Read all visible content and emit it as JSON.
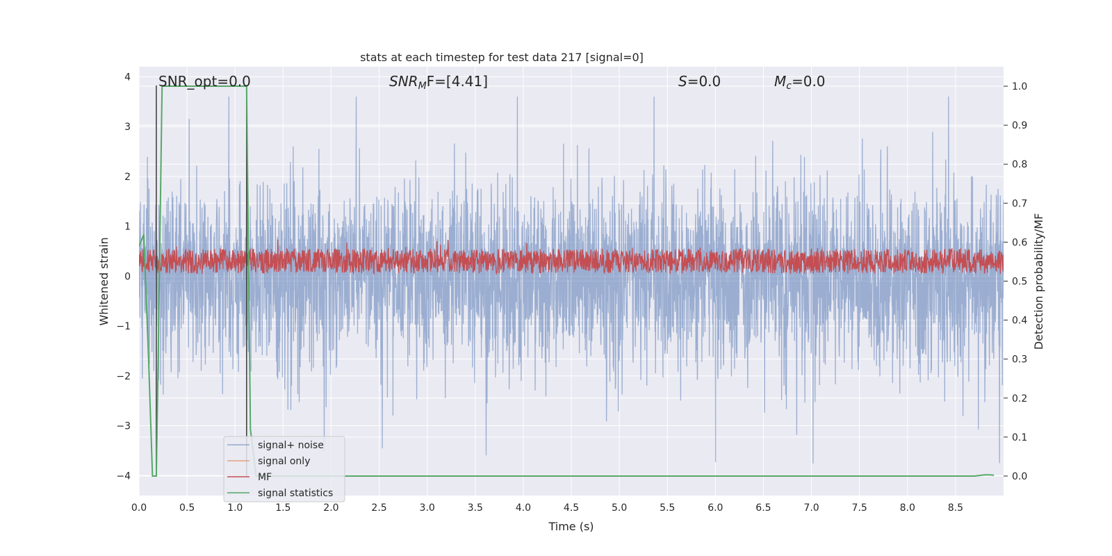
{
  "chart_data": {
    "type": "line",
    "title": "stats at each timestep for test data 217 [signal=0]",
    "xlabel": "Time (s)",
    "ylabel": "Whitened strain",
    "ylabel_right": "Detection probability/MF",
    "xlim": [
      0,
      9.0
    ],
    "ylim": [
      -4.4,
      4.2
    ],
    "ylim_right": [
      -0.05,
      1.05
    ],
    "xticks": [
      0.0,
      0.5,
      1.0,
      1.5,
      2.0,
      2.5,
      3.0,
      3.5,
      4.0,
      4.5,
      5.0,
      5.5,
      6.0,
      6.5,
      7.0,
      7.5,
      8.0,
      8.5
    ],
    "xtick_labels": [
      "0.0",
      "0.5",
      "1.0",
      "1.5",
      "2.0",
      "2.5",
      "3.0",
      "3.5",
      "4.0",
      "4.5",
      "5.0",
      "5.5",
      "6.0",
      "6.5",
      "7.0",
      "7.5",
      "8.0",
      "8.5"
    ],
    "yticks": [
      -4,
      -3,
      -2,
      -1,
      0,
      1,
      2,
      3,
      4
    ],
    "ytick_labels": [
      "−4",
      "−3",
      "−2",
      "−1",
      "0",
      "1",
      "2",
      "3",
      "4"
    ],
    "yticks_right": [
      0.0,
      0.1,
      0.2,
      0.3,
      0.4,
      0.5,
      0.6,
      0.7,
      0.8,
      0.9,
      1.0
    ],
    "ytick_labels_right": [
      "0.0",
      "0.1",
      "0.2",
      "0.3",
      "0.4",
      "0.5",
      "0.6",
      "0.7",
      "0.8",
      "0.9",
      "1.0"
    ],
    "grid": true,
    "legend_position": "lower-left",
    "annotations": {
      "snr_opt": "SNR_opt=0.0",
      "snr_mf_main": "SNR",
      "snr_mf_sub": "M",
      "snr_mf_rest": "F=[4.41]",
      "s_main": "S",
      "s_rest": "=0.0",
      "mc_main": "M",
      "mc_sub": "c",
      "mc_rest": "=0.0"
    },
    "vlines_x": [
      0.18,
      1.12
    ],
    "series": [
      {
        "name": "signal+ noise",
        "color": "#4c72b0",
        "axis": "left",
        "style": "noise",
        "x_range": [
          0.0,
          9.0
        ],
        "typical_range": [
          -1.6,
          1.5
        ],
        "extreme_range": [
          -4.0,
          3.6
        ]
      },
      {
        "name": "signal only",
        "color": "#dd8452",
        "axis": "left",
        "x": [],
        "y": []
      },
      {
        "name": "MF",
        "color": "#c44e52",
        "axis": "left",
        "style": "noise",
        "x_range": [
          0.0,
          9.0
        ],
        "typical_range": [
          0.05,
          0.55
        ],
        "extreme_range": [
          0.0,
          0.98
        ]
      },
      {
        "name": "signal statistics",
        "color": "#55a868",
        "axis": "right",
        "x": [
          0.0,
          0.05,
          0.1,
          0.14,
          0.18,
          0.2,
          0.24,
          0.28,
          0.35,
          1.0,
          1.1,
          1.12,
          1.16,
          1.22,
          1.4,
          2.0,
          4.0,
          6.0,
          8.0,
          8.7,
          8.8,
          8.85,
          8.9
        ],
        "y": [
          0.59,
          0.62,
          0.3,
          0.0,
          0.0,
          0.3,
          1.0,
          1.0,
          1.0,
          1.0,
          1.0,
          1.0,
          0.12,
          0.0,
          0.0,
          0.0,
          0.0,
          0.0,
          0.0,
          0.0,
          0.003,
          0.003,
          0.002
        ]
      }
    ]
  },
  "colors": {
    "plot_background": "#eaeaf2",
    "grid": "#ffffff",
    "vline": "#444444"
  }
}
